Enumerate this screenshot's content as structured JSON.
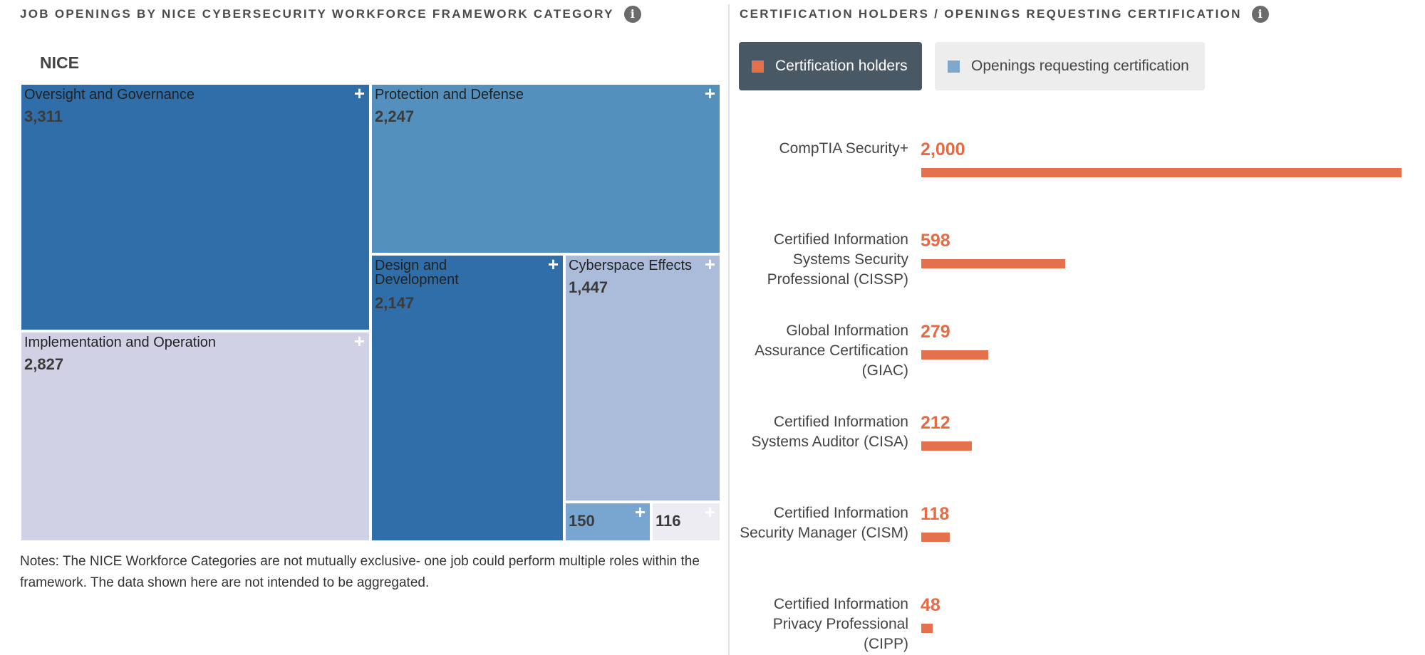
{
  "left_panel": {
    "title": "JOB OPENINGS BY NICE CYBERSECURITY WORKFORCE FRAMEWORK CATEGORY",
    "info_icon": "info-icon",
    "breadcrumb": "NICE",
    "notes": "Notes: The NICE Workforce Categories are not mutually exclusive- one job could perform multiple roles within the framework. The data shown here are not intended to be aggregated.",
    "expand_icon": "plus-icon"
  },
  "right_panel": {
    "title": "CERTIFICATION HOLDERS / OPENINGS REQUESTING CERTIFICATION",
    "info_icon": "info-icon",
    "legend": {
      "holders": "Certification holders",
      "openings": "Openings requesting certification"
    }
  },
  "colors": {
    "dark_blue": "#2f6ea9",
    "mid_blue": "#5390be",
    "light_blue": "#aabcd9",
    "lavender": "#d0d1e5",
    "pale": "#ececf2",
    "small_blue": "#79a6d0",
    "orange": "#e4704c",
    "legend_active": "#495865"
  },
  "chart_data": [
    {
      "type": "treemap",
      "title": "JOB OPENINGS BY NICE CYBERSECURITY WORKFORCE FRAMEWORK CATEGORY",
      "root": "NICE",
      "items": [
        {
          "name": "Oversight and Governance",
          "value": "3,311",
          "v": 3311
        },
        {
          "name": "Implementation and Operation",
          "value": "2,827",
          "v": 2827
        },
        {
          "name": "Protection and Defense",
          "value": "2,247",
          "v": 2247
        },
        {
          "name": "Design and Development",
          "value": "2,147",
          "v": 2147
        },
        {
          "name": "Cyberspace Effects",
          "value": "1,447",
          "v": 1447
        },
        {
          "name": "",
          "value": "150",
          "v": 150
        },
        {
          "name": "",
          "value": "116",
          "v": 116
        }
      ]
    },
    {
      "type": "bar",
      "orientation": "horizontal",
      "title": "CERTIFICATION HOLDERS / OPENINGS REQUESTING CERTIFICATION",
      "series": [
        {
          "name": "Certification holders",
          "active": true
        },
        {
          "name": "Openings requesting certification",
          "active": false
        }
      ],
      "categories": [
        "CompTIA Security+",
        "Certified Information Systems Security Professional (CISSP)",
        "Global Information Assurance Certification (GIAC)",
        "Certified Information Systems Auditor (CISA)",
        "Certified Information Security Manager (CISM)",
        "Certified Information Privacy Professional (CIPP)"
      ],
      "label_lines": [
        [
          "CompTIA Security+"
        ],
        [
          "Certified Information",
          "Systems Security",
          "Professional (CISSP)"
        ],
        [
          "Global Information",
          "Assurance Certification",
          "(GIAC)"
        ],
        [
          "Certified Information",
          "Systems Auditor (CISA)"
        ],
        [
          "Certified Information",
          "Security Manager (CISM)"
        ],
        [
          "Certified Information",
          "Privacy Professional",
          "(CIPP)"
        ]
      ],
      "values": [
        2000,
        598,
        279,
        212,
        118,
        48
      ],
      "value_labels": [
        "2,000",
        "598",
        "279",
        "212",
        "118",
        "48"
      ],
      "xlim": [
        0,
        2000
      ]
    }
  ]
}
